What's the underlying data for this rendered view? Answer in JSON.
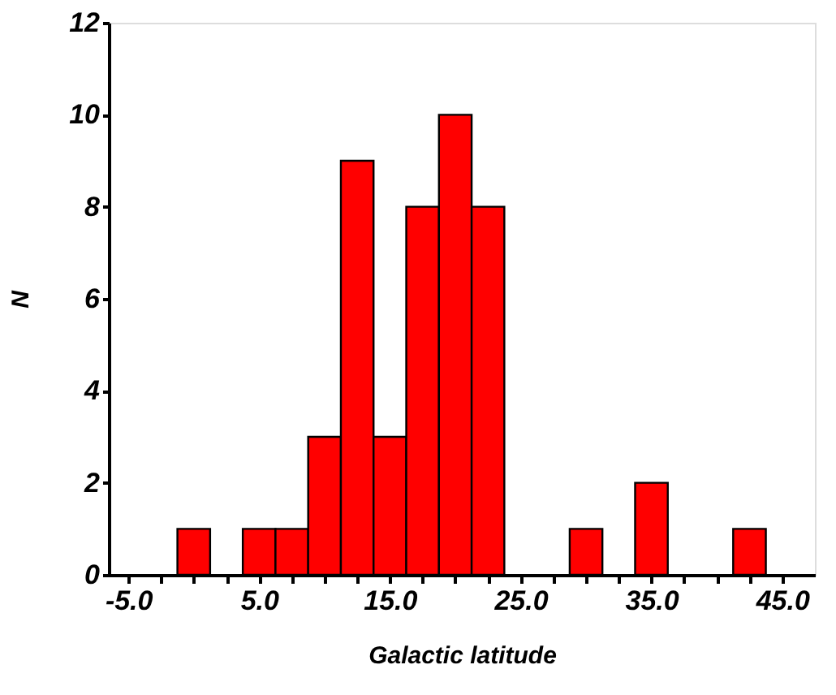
{
  "chart_data": {
    "type": "histogram",
    "xlabel": "Galactic latitude",
    "ylabel": "N",
    "color": "#ff0000",
    "bins": [
      -1.25,
      1.25,
      3.75,
      6.25,
      8.75,
      11.25,
      13.75,
      16.25,
      18.75,
      21.25,
      23.75,
      26.25,
      28.75,
      31.25,
      33.75,
      36.25,
      38.75,
      41.25,
      43.75
    ],
    "values": [
      1,
      0,
      1,
      1,
      3,
      9,
      3,
      8,
      10,
      8,
      0,
      0,
      1,
      0,
      2,
      0,
      0,
      1
    ],
    "xlim": [
      -6.5,
      47.5
    ],
    "xticks": [
      {
        "value": -5,
        "label": "-5.0"
      },
      {
        "value": -2.5,
        "label": null
      },
      {
        "value": 0,
        "label": null
      },
      {
        "value": 2.5,
        "label": null
      },
      {
        "value": 5,
        "label": "5.0"
      },
      {
        "value": 7.5,
        "label": null
      },
      {
        "value": 10,
        "label": null
      },
      {
        "value": 12.5,
        "label": null
      },
      {
        "value": 15,
        "label": "15.0"
      },
      {
        "value": 17.5,
        "label": null
      },
      {
        "value": 20,
        "label": null
      },
      {
        "value": 22.5,
        "label": null
      },
      {
        "value": 25,
        "label": "25.0"
      },
      {
        "value": 27.5,
        "label": null
      },
      {
        "value": 30,
        "label": null
      },
      {
        "value": 32.5,
        "label": null
      },
      {
        "value": 35,
        "label": "35.0"
      },
      {
        "value": 37.5,
        "label": null
      },
      {
        "value": 40,
        "label": null
      },
      {
        "value": 42.5,
        "label": null
      },
      {
        "value": 45,
        "label": "45.0"
      }
    ],
    "ylim": [
      0,
      12
    ],
    "yticks": [
      0,
      2,
      4,
      6,
      8,
      10,
      12
    ],
    "grid": false
  }
}
